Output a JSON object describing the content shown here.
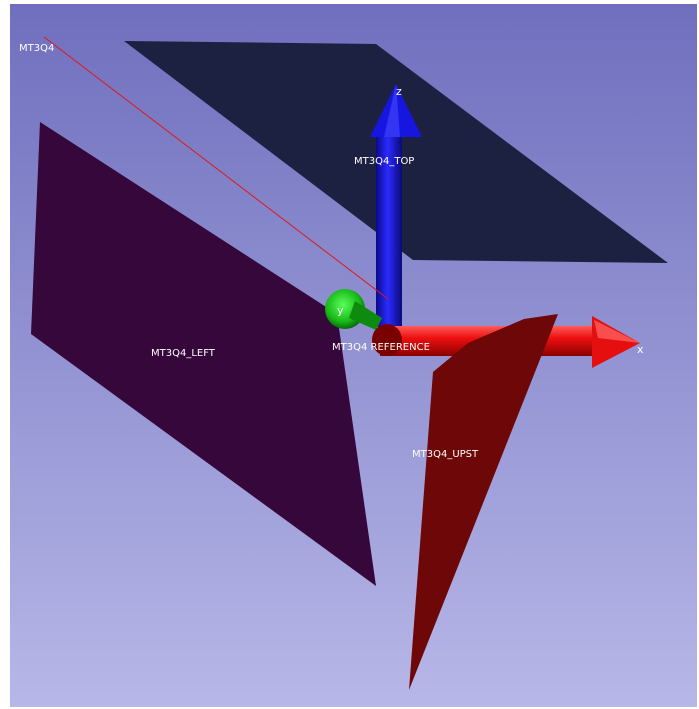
{
  "scene": {
    "background_top": "#6f6fbe",
    "background_bottom": "#b7b7e8",
    "line_label": "MT3Q4",
    "line_color": "#e01818",
    "planes": {
      "top": {
        "label": "MT3Q4_TOP",
        "color": "#1c2141"
      },
      "left": {
        "label": "MT3Q4_LEFT",
        "color": "#35073b"
      },
      "upst": {
        "label": "MT3Q4_UPST",
        "color": "#6e0707"
      }
    },
    "reference": {
      "label": "MT3Q4 REFERENCE",
      "axes": {
        "x": {
          "label": "x",
          "color": "#e60f0f"
        },
        "y": {
          "label": "y",
          "color": "#17b817"
        },
        "z": {
          "label": "z",
          "color": "#1616e0"
        }
      }
    }
  }
}
